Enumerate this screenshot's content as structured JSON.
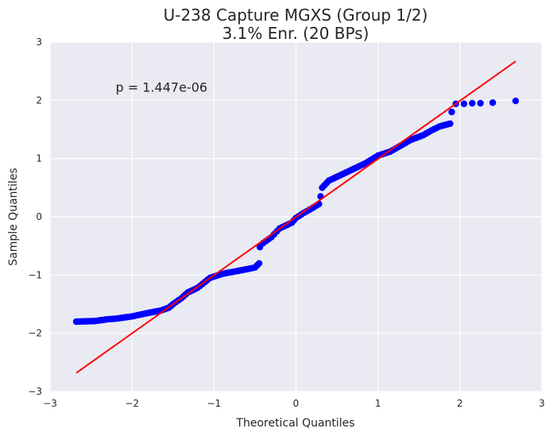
{
  "chart_data": {
    "type": "scatter",
    "title_lines": [
      "U-238 Capture MGXS (Group 1/2)",
      "3.1% Enr. (20 BPs)"
    ],
    "xlabel": "Theoretical Quantiles",
    "ylabel": "Sample Quantiles",
    "xlim": [
      -3,
      3
    ],
    "ylim": [
      -3,
      3
    ],
    "xticks": [
      "−3",
      "−2",
      "−1",
      "0",
      "1",
      "2",
      "3"
    ],
    "yticks": [
      "3",
      "2",
      "1",
      "0",
      "−1",
      "−2",
      "−3"
    ],
    "grid": true,
    "annotation": "p = 1.447e-06",
    "annotation_x": -2.2,
    "annotation_y": 2.15,
    "reference_line": {
      "x": [
        -2.68,
        2.68
      ],
      "y": [
        -2.68,
        2.67
      ],
      "color": "#ff0000"
    },
    "point_color": "#0000ff",
    "background_color": "#eaeaf2",
    "anchors": [
      [
        -2.68,
        -1.8
      ],
      [
        -2.45,
        -1.79
      ],
      [
        -2.3,
        -1.76
      ],
      [
        -2.2,
        -1.75
      ],
      [
        -2.1,
        -1.73
      ],
      [
        -2.0,
        -1.71
      ],
      [
        -1.9,
        -1.68
      ],
      [
        -1.8,
        -1.65
      ],
      [
        -1.65,
        -1.61
      ],
      [
        -1.55,
        -1.56
      ],
      [
        -1.5,
        -1.5
      ],
      [
        -1.4,
        -1.4
      ],
      [
        -1.32,
        -1.3
      ],
      [
        -1.2,
        -1.22
      ],
      [
        -1.05,
        -1.05
      ],
      [
        -0.9,
        -0.98
      ],
      [
        -0.75,
        -0.94
      ],
      [
        -0.6,
        -0.9
      ],
      [
        -0.5,
        -0.87
      ],
      [
        -0.45,
        -0.8
      ],
      [
        -0.44,
        -0.52
      ],
      [
        -0.4,
        -0.45
      ],
      [
        -0.3,
        -0.35
      ],
      [
        -0.2,
        -0.2
      ],
      [
        -0.05,
        -0.1
      ],
      [
        0.0,
        -0.02
      ],
      [
        0.1,
        0.07
      ],
      [
        0.2,
        0.15
      ],
      [
        0.28,
        0.22
      ],
      [
        0.3,
        0.35
      ],
      [
        0.32,
        0.5
      ],
      [
        0.4,
        0.62
      ],
      [
        0.55,
        0.72
      ],
      [
        0.7,
        0.82
      ],
      [
        0.85,
        0.92
      ],
      [
        1.0,
        1.05
      ],
      [
        1.15,
        1.12
      ],
      [
        1.25,
        1.2
      ],
      [
        1.4,
        1.32
      ],
      [
        1.55,
        1.4
      ],
      [
        1.65,
        1.48
      ],
      [
        1.75,
        1.55
      ],
      [
        1.88,
        1.6
      ],
      [
        1.9,
        1.8
      ]
    ],
    "tail_points": [
      [
        1.95,
        1.94
      ],
      [
        2.05,
        1.94
      ],
      [
        2.15,
        1.95
      ],
      [
        2.25,
        1.95
      ],
      [
        2.4,
        1.96
      ],
      [
        2.68,
        1.99
      ]
    ]
  }
}
